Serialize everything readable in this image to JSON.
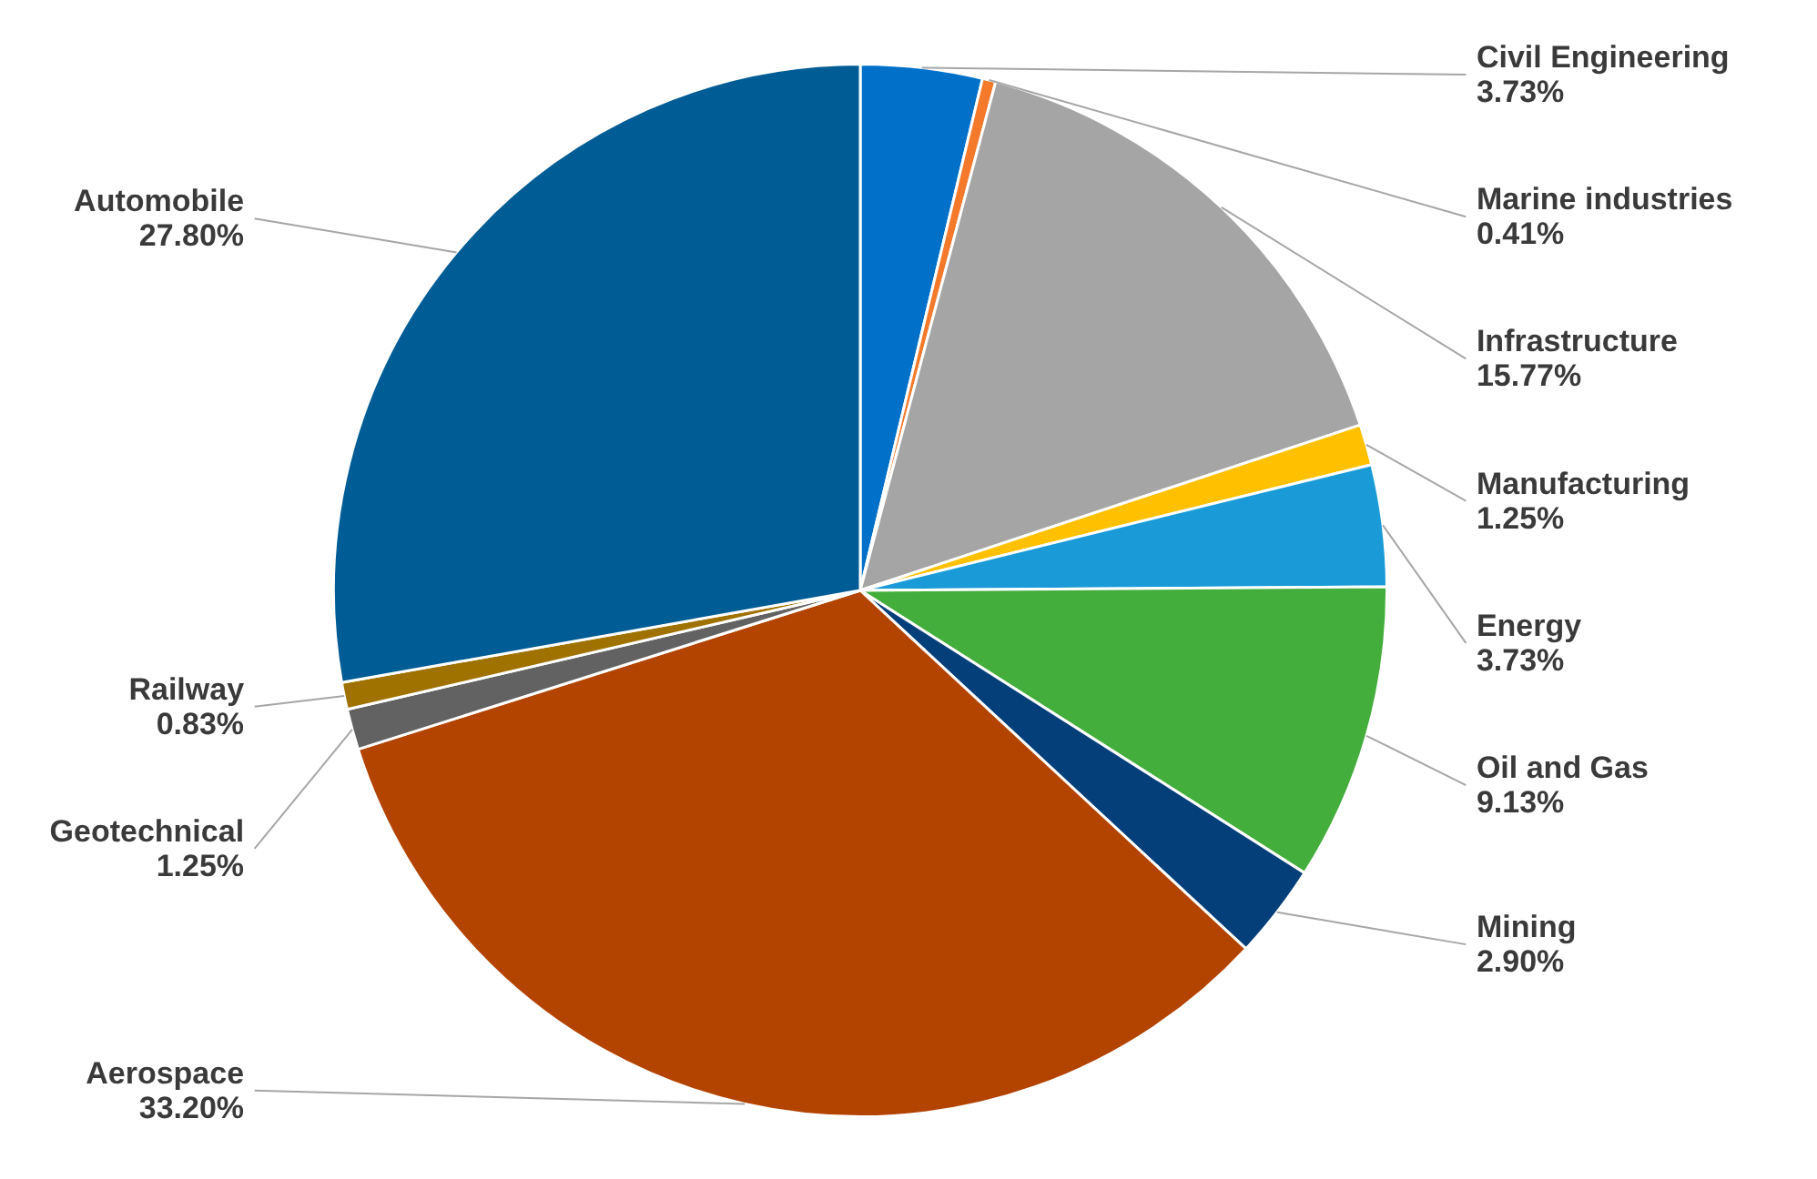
{
  "chart_data": {
    "type": "pie",
    "categories": [
      "Civil Engineering",
      "Marine industries",
      "Infrastructure",
      "Manufacturing",
      "Energy",
      "Oil and Gas",
      "Mining",
      "Aerospace",
      "Geotechnical",
      "Railway",
      "Automobile"
    ],
    "values": [
      3.73,
      0.41,
      15.77,
      1.25,
      3.73,
      9.13,
      2.9,
      33.2,
      1.25,
      0.83,
      27.8
    ],
    "value_labels": [
      "3.73%",
      "0.41%",
      "15.77%",
      "1.25%",
      "3.73%",
      "9.13%",
      "2.90%",
      "33.20%",
      "1.25%",
      "0.83%",
      "27.80%"
    ],
    "colors": [
      "#0070c9",
      "#f4792b",
      "#a5a5a5",
      "#ffc000",
      "#1a9bd7",
      "#44ae3d",
      "#053f7a",
      "#b34400",
      "#626262",
      "#9f7200",
      "#005c94"
    ]
  }
}
